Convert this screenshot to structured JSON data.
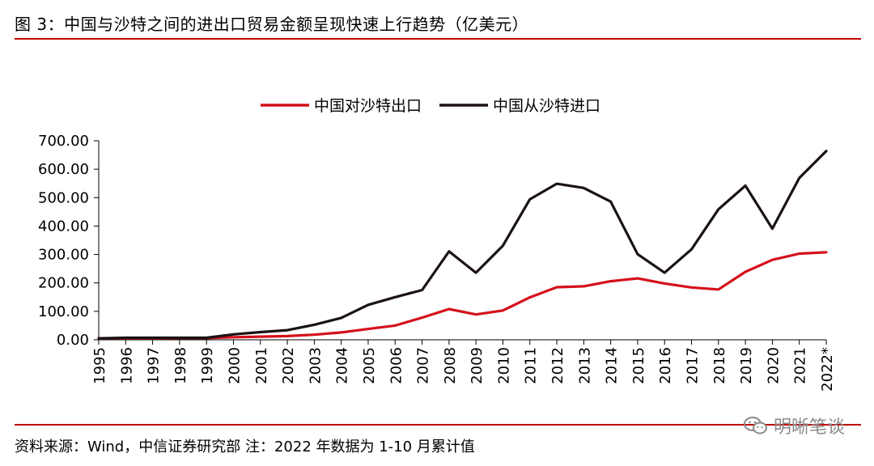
{
  "figure": {
    "title": "图 3：中国与沙特之间的进出口贸易金额呈现快速上行趋势（亿美元）",
    "source": "资料来源：Wind，中信证券研究部 注：2022 年数据为 1-10 月累计值",
    "watermark": "明晰笔谈"
  },
  "colors": {
    "rule": "#c00000",
    "export_series": "#d4101b",
    "import_series": "#1a1213"
  },
  "chart_data": {
    "type": "line",
    "title": "",
    "xlabel": "",
    "ylabel": "",
    "x": [
      "1995",
      "1996",
      "1997",
      "1998",
      "1999",
      "2000",
      "2001",
      "2002",
      "2003",
      "2004",
      "2005",
      "2006",
      "2007",
      "2008",
      "2009",
      "2010",
      "2011",
      "2012",
      "2013",
      "2014",
      "2015",
      "2016",
      "2017",
      "2018",
      "2019",
      "2020",
      "2021",
      "2022*"
    ],
    "ylim": [
      0,
      700
    ],
    "yticks": [
      "0.00",
      "100.00",
      "200.00",
      "300.00",
      "400.00",
      "500.00",
      "600.00",
      "700.00"
    ],
    "legend_position": "top-center",
    "grid": false,
    "series": [
      {
        "name": "中国对沙特出口",
        "color": "#d4101b",
        "values": [
          5,
          5,
          5,
          6,
          6,
          9,
          11,
          13,
          18,
          26,
          38,
          50,
          78,
          108,
          89,
          103,
          149,
          185,
          188,
          206,
          216,
          198,
          184,
          177,
          239,
          281,
          303,
          308
        ]
      },
      {
        "name": "中国从沙特进口",
        "color": "#1a1213",
        "values": [
          5,
          7,
          7,
          7,
          7,
          19,
          27,
          34,
          53,
          77,
          123,
          150,
          175,
          311,
          236,
          331,
          494,
          549,
          534,
          486,
          301,
          236,
          318,
          459,
          542,
          391,
          569,
          664
        ]
      }
    ]
  }
}
